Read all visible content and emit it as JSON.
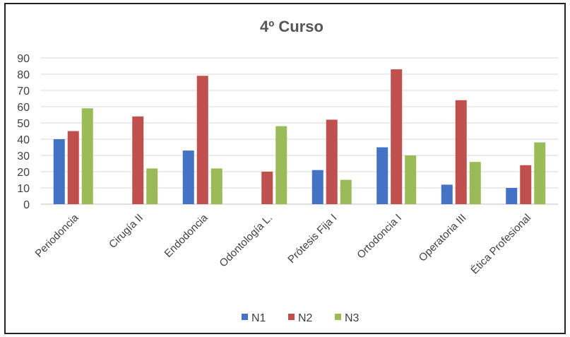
{
  "chart_data": {
    "type": "bar",
    "title": "4º Curso",
    "xlabel": "",
    "ylabel": "",
    "ylim": [
      0,
      90
    ],
    "yticks": [
      0,
      10,
      20,
      30,
      40,
      50,
      60,
      70,
      80,
      90
    ],
    "grid": true,
    "legend_position": "bottom",
    "categories": [
      "Periodoncia",
      "Cirugía II",
      "Endodoncia",
      "Odontología L.",
      "Prótesis Fija I",
      "Ortodoncia I",
      "Operatoria III",
      "Ética Profesional"
    ],
    "series": [
      {
        "name": "N1",
        "color": "#4472C4",
        "values": [
          40,
          0,
          33,
          0,
          21,
          35,
          12,
          10
        ]
      },
      {
        "name": "N2",
        "color": "#C0504D",
        "values": [
          45,
          54,
          79,
          20,
          52,
          83,
          64,
          24
        ]
      },
      {
        "name": "N3",
        "color": "#9BBB59",
        "values": [
          59,
          22,
          22,
          48,
          15,
          30,
          26,
          38
        ]
      }
    ]
  }
}
